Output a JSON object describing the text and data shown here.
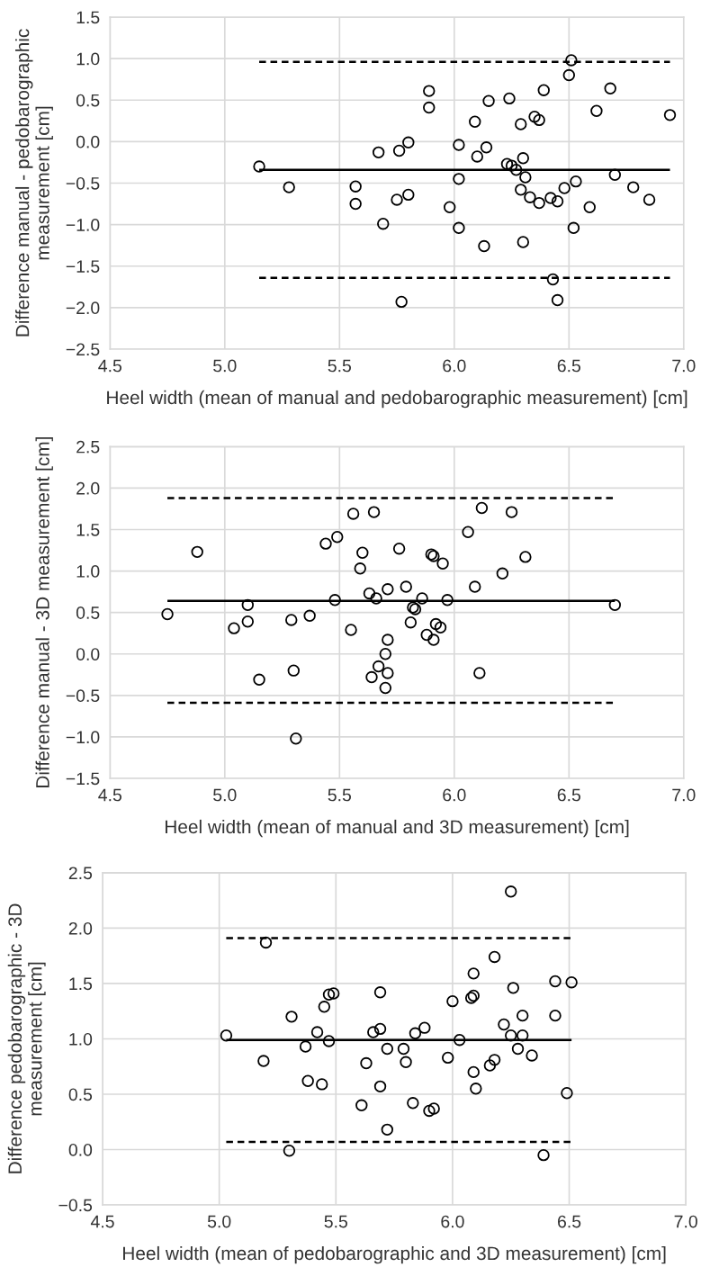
{
  "chart_data": [
    {
      "type": "scatter",
      "xlabel": "Heel width (mean of manual and pedobarographic measurement) [cm]",
      "ylabel": "Difference manual - pedobarographic\nmeasurement [cm]",
      "x": [
        5.15,
        5.28,
        5.57,
        5.57,
        5.67,
        5.76,
        5.8,
        5.69,
        5.75,
        5.8,
        5.77,
        5.89,
        5.89,
        5.98,
        6.02,
        6.02,
        6.02,
        6.09,
        6.1,
        6.14,
        6.13,
        6.15,
        6.24,
        6.23,
        6.25,
        6.27,
        6.29,
        6.29,
        6.3,
        6.31,
        6.3,
        6.33,
        6.35,
        6.37,
        6.37,
        6.39,
        6.42,
        6.45,
        6.48,
        6.51,
        6.5,
        6.43,
        6.45,
        6.53,
        6.52,
        6.59,
        6.62,
        6.68,
        6.7,
        6.78,
        6.85,
        6.94
      ],
      "series": [
        {
          "color": "#000000",
          "values": [
            -0.3,
            -0.55,
            -0.54,
            -0.75,
            -0.13,
            -0.11,
            -0.01,
            -0.99,
            -0.7,
            -0.64,
            -1.93,
            0.61,
            0.41,
            -0.79,
            -0.04,
            -0.45,
            -1.04,
            0.24,
            -0.18,
            -0.07,
            -1.26,
            0.49,
            0.52,
            -0.27,
            -0.29,
            -0.34,
            0.21,
            -0.58,
            -0.2,
            -0.43,
            -1.21,
            -0.67,
            0.3,
            0.26,
            -0.74,
            0.62,
            -0.68,
            -0.72,
            -0.56,
            0.98,
            0.8,
            -1.66,
            -1.91,
            -0.48,
            -1.04,
            -0.79,
            0.37,
            0.64,
            -0.4,
            -0.55,
            -0.7,
            0.32
          ]
        }
      ],
      "marker": "circle",
      "grid": true,
      "xlim": [
        4.5,
        7.0
      ],
      "xticks": [
        4.5,
        {
          "value": 5,
          "label": "5.0"
        },
        5.5,
        {
          "value": 6,
          "label": "6.0"
        },
        6.5,
        {
          "value": 7,
          "label": "7.0"
        }
      ],
      "ylim": [
        -2.5,
        1.5
      ],
      "yticks": [
        {
          "value": -2.5,
          "label": "−2.5"
        },
        {
          "value": -2.0,
          "label": "−2.0"
        },
        {
          "value": -1.5,
          "label": "−1.5"
        },
        {
          "value": -1.0,
          "label": "−1.0"
        },
        {
          "value": -0.5,
          "label": "−0.5"
        },
        {
          "value": 0,
          "label": "0.0"
        },
        0.5,
        {
          "value": 1,
          "label": "1.0"
        },
        1.5
      ],
      "ref_lines": [
        {
          "axis": "y",
          "value": -0.34,
          "color": "#000000",
          "line_style": "solid"
        },
        {
          "axis": "y",
          "value": 0.96,
          "color": "#000000",
          "line_style": "dashed"
        },
        {
          "axis": "y",
          "value": -1.64,
          "color": "#000000",
          "line_style": "dashed"
        }
      ]
    },
    {
      "type": "scatter",
      "xlabel": "Heel width (mean of manual and 3D measurement) [cm]",
      "ylabel": "Difference manual - 3D measurement [cm]",
      "x": [
        4.75,
        4.88,
        5.04,
        5.1,
        5.1,
        5.15,
        5.29,
        5.3,
        5.31,
        5.37,
        5.44,
        5.49,
        5.48,
        5.56,
        5.55,
        5.65,
        5.6,
        5.59,
        5.64,
        5.63,
        5.66,
        5.67,
        5.7,
        5.7,
        5.71,
        5.71,
        5.71,
        5.76,
        5.79,
        5.81,
        5.82,
        5.83,
        5.86,
        5.88,
        5.9,
        5.91,
        5.91,
        5.92,
        5.94,
        5.95,
        5.97,
        6.06,
        6.09,
        6.12,
        6.11,
        6.21,
        6.25,
        6.31,
        6.7
      ],
      "series": [
        {
          "color": "#000000",
          "values": [
            0.48,
            1.23,
            0.31,
            0.59,
            0.39,
            -0.31,
            0.41,
            -0.2,
            -1.02,
            0.46,
            1.33,
            1.41,
            0.65,
            1.69,
            0.29,
            1.71,
            1.22,
            1.03,
            -0.28,
            0.73,
            0.67,
            -0.15,
            0.0,
            -0.41,
            0.17,
            -0.23,
            0.78,
            1.27,
            0.81,
            0.38,
            0.56,
            0.54,
            0.67,
            0.23,
            1.2,
            1.18,
            0.17,
            0.36,
            0.32,
            1.09,
            0.65,
            1.47,
            0.81,
            1.76,
            -0.23,
            0.97,
            1.71,
            1.17,
            0.59
          ]
        }
      ],
      "marker": "circle",
      "grid": true,
      "xlim": [
        4.5,
        7.0
      ],
      "xticks": [
        4.5,
        {
          "value": 5,
          "label": "5.0"
        },
        5.5,
        {
          "value": 6,
          "label": "6.0"
        },
        6.5,
        {
          "value": 7,
          "label": "7.0"
        }
      ],
      "ylim": [
        -1.5,
        2.5
      ],
      "yticks": [
        {
          "value": -1.5,
          "label": "−1.5"
        },
        {
          "value": -1.0,
          "label": "−1.0"
        },
        {
          "value": -0.5,
          "label": "−0.5"
        },
        {
          "value": 0,
          "label": "0.0"
        },
        0.5,
        {
          "value": 1,
          "label": "1.0"
        },
        1.5,
        {
          "value": 2,
          "label": "2.0"
        },
        2.5
      ],
      "ref_lines": [
        {
          "axis": "y",
          "value": 0.64,
          "color": "#000000",
          "line_style": "solid"
        },
        {
          "axis": "y",
          "value": 1.88,
          "color": "#000000",
          "line_style": "dashed"
        },
        {
          "axis": "y",
          "value": -0.59,
          "color": "#000000",
          "line_style": "dashed"
        }
      ]
    },
    {
      "type": "scatter",
      "xlabel": "Heel width (mean of pedobarographic and 3D measurement) [cm]",
      "ylabel": "Difference pedobarographic - 3D\nmeasurement [cm]",
      "x": [
        5.03,
        5.2,
        5.31,
        5.37,
        5.42,
        5.45,
        5.47,
        5.49,
        5.47,
        5.66,
        5.69,
        5.69,
        5.72,
        5.79,
        5.84,
        5.88,
        6.0,
        6.03,
        6.08,
        6.09,
        6.09,
        6.18,
        6.25,
        6.22,
        6.26,
        6.25,
        6.3,
        6.3,
        6.28,
        6.44,
        6.44,
        6.51,
        5.19,
        5.38,
        5.44,
        5.61,
        5.63,
        5.69,
        5.72,
        5.8,
        5.83,
        5.9,
        5.92,
        5.98,
        6.09,
        6.1,
        6.16,
        6.18,
        6.34,
        6.49,
        5.3,
        6.39
      ],
      "series": [
        {
          "color": "#000000",
          "values": [
            1.03,
            1.87,
            1.2,
            0.93,
            1.06,
            1.29,
            1.4,
            1.41,
            0.98,
            1.06,
            1.09,
            1.42,
            0.91,
            0.91,
            1.05,
            1.1,
            1.34,
            0.99,
            1.37,
            1.39,
            1.59,
            1.74,
            2.33,
            1.13,
            1.46,
            1.03,
            1.21,
            1.03,
            0.91,
            1.52,
            1.21,
            1.51,
            0.8,
            0.62,
            0.59,
            0.4,
            0.78,
            0.57,
            0.18,
            0.79,
            0.42,
            0.35,
            0.37,
            0.83,
            0.7,
            0.55,
            0.76,
            0.81,
            0.85,
            0.51,
            -0.01,
            -0.05
          ]
        }
      ],
      "marker": "circle",
      "grid": true,
      "xlim": [
        4.5,
        7.0
      ],
      "xticks": [
        4.5,
        {
          "value": 5,
          "label": "5.0"
        },
        5.5,
        {
          "value": 6,
          "label": "6.0"
        },
        6.5,
        {
          "value": 7,
          "label": "7.0"
        }
      ],
      "ylim": [
        -0.5,
        2.5
      ],
      "yticks": [
        {
          "value": -0.5,
          "label": "−0.5"
        },
        {
          "value": 0,
          "label": "0.0"
        },
        0.5,
        {
          "value": 1,
          "label": "1.0"
        },
        1.5,
        {
          "value": 2,
          "label": "2.0"
        },
        2.5
      ],
      "ref_lines": [
        {
          "axis": "y",
          "value": 0.99,
          "color": "#000000",
          "line_style": "solid"
        },
        {
          "axis": "y",
          "value": 1.91,
          "color": "#000000",
          "line_style": "dashed"
        },
        {
          "axis": "y",
          "value": 0.07,
          "color": "#000000",
          "line_style": "dashed"
        }
      ]
    }
  ]
}
